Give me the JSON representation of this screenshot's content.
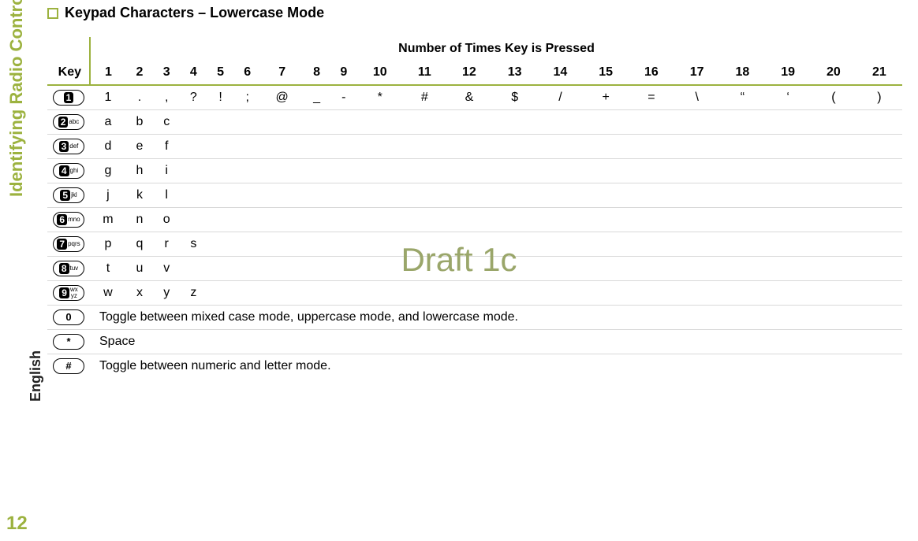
{
  "colors": {
    "accent": "#9cb23f",
    "text": "#222222",
    "border_light": "#d9d9d9",
    "border_dark": "#9cb23f",
    "watermark": "#9aa66a"
  },
  "page_number": "12",
  "side_label": "Identifying Radio Controls",
  "side_lang": "English",
  "title": "Keypad Characters – Lowercase Mode",
  "watermark": "Draft 1c",
  "header": {
    "key_label": "Key",
    "span_label": "Number of Times Key is Pressed",
    "press_counts": [
      "1",
      "2",
      "3",
      "4",
      "5",
      "6",
      "7",
      "8",
      "9",
      "10",
      "11",
      "12",
      "13",
      "14",
      "15",
      "16",
      "17",
      "18",
      "19",
      "20",
      "21"
    ]
  },
  "rows": [
    {
      "key_main": "1",
      "key_sub": "",
      "cells": [
        "1",
        ".",
        ",",
        "?",
        "!",
        ";",
        "@",
        "_",
        "-",
        "*",
        "#",
        "&",
        "$",
        "/",
        "+",
        "=",
        "\\",
        "“",
        "‘",
        "(",
        ")"
      ]
    },
    {
      "key_main": "2",
      "key_sub": "abc",
      "cells": [
        "a",
        "b",
        "c"
      ]
    },
    {
      "key_main": "3",
      "key_sub": "def",
      "cells": [
        "d",
        "e",
        "f"
      ]
    },
    {
      "key_main": "4",
      "key_sub": "ghi",
      "cells": [
        "g",
        "h",
        "i"
      ]
    },
    {
      "key_main": "5",
      "key_sub": "jkl",
      "cells": [
        "j",
        "k",
        "l"
      ]
    },
    {
      "key_main": "6",
      "key_sub": "mno",
      "cells": [
        "m",
        "n",
        "o"
      ]
    },
    {
      "key_main": "7",
      "key_sub": "pqrs",
      "cells": [
        "p",
        "q",
        "r",
        "s"
      ]
    },
    {
      "key_main": "8",
      "key_sub": "tuv",
      "cells": [
        "t",
        "u",
        "v"
      ]
    },
    {
      "key_main": "9",
      "key_sub": "wx\nyz",
      "cells": [
        "w",
        "x",
        "y",
        "z"
      ]
    },
    {
      "key_main": "0",
      "key_sub": "",
      "plain": true,
      "span_text": "Toggle between mixed case mode, uppercase mode, and lowercase mode."
    },
    {
      "key_main": "*",
      "key_sub": "",
      "plain": true,
      "span_text": "Space"
    },
    {
      "key_main": "#",
      "key_sub": "",
      "plain": true,
      "span_text": "Toggle between numeric and letter mode."
    }
  ]
}
